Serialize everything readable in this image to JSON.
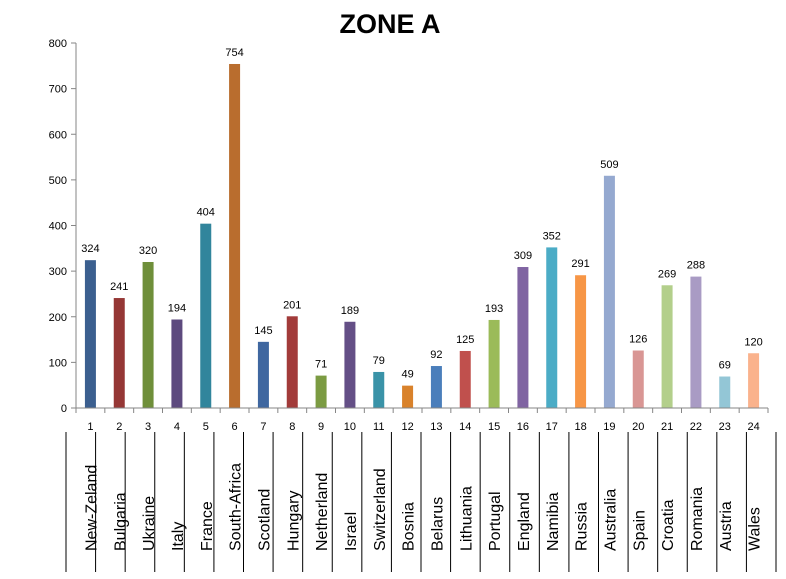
{
  "chart_data": {
    "type": "bar",
    "title": "ZONE A",
    "xlabel": "",
    "ylabel": "",
    "ylim": [
      0,
      800
    ],
    "yticks": [
      0,
      100,
      200,
      300,
      400,
      500,
      600,
      700,
      800
    ],
    "grid": false,
    "legend": "none",
    "categories": [
      "1",
      "2",
      "3",
      "4",
      "5",
      "6",
      "7",
      "8",
      "9",
      "10",
      "11",
      "12",
      "13",
      "14",
      "15",
      "16",
      "17",
      "18",
      "19",
      "20",
      "21",
      "22",
      "23",
      "24"
    ],
    "category_names": [
      "New-Zeland",
      "Bulgaria",
      "Ukraine",
      "Italy",
      "France",
      "South-Africa",
      "Scotland",
      "Hungary",
      "Netherland",
      "Israel",
      "Switzerland",
      "Bosnia",
      "Belarus",
      "Lithuania",
      "Portugal",
      "England",
      "Namibia",
      "Russia",
      "Australia",
      "Spain",
      "Croatia",
      "Romania",
      "Austria",
      "Wales"
    ],
    "values": [
      324,
      241,
      320,
      194,
      404,
      754,
      145,
      201,
      71,
      189,
      79,
      49,
      92,
      125,
      193,
      309,
      352,
      291,
      509,
      126,
      269,
      288,
      69,
      120
    ],
    "colors": [
      "#3b5f8f",
      "#953735",
      "#6f8f3a",
      "#5d4a7e",
      "#31859c",
      "#b96d2e",
      "#3f67a0",
      "#a23b3a",
      "#7b9b42",
      "#644f86",
      "#3a93a8",
      "#d9822b",
      "#4a7ebb",
      "#c0504d",
      "#9bbb59",
      "#8064a2",
      "#4bacc6",
      "#f79646",
      "#95a9d0",
      "#d99694",
      "#b3cf8b",
      "#a99bc4",
      "#93c6d6",
      "#fab28c"
    ]
  }
}
